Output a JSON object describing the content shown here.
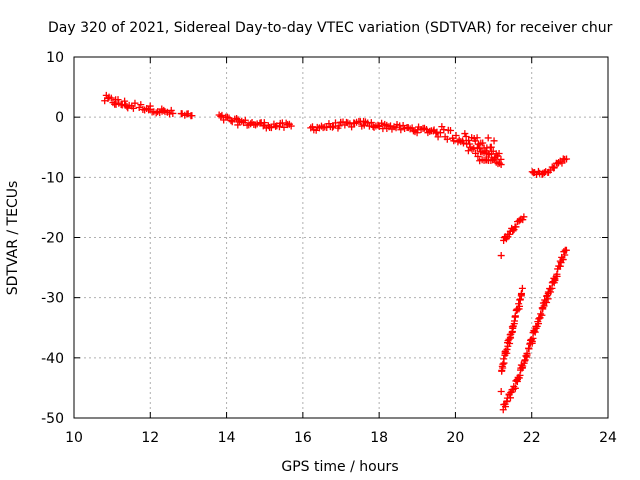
{
  "chart_data": {
    "type": "scatter",
    "title": "Day 320 of 2021, Sidereal Day-to-day VTEC variation (SDTVAR) for receiver chur",
    "xlabel": "GPS time / hours",
    "ylabel": "SDTVAR / TECUs",
    "xlim": [
      10,
      24
    ],
    "ylim": [
      -50,
      10
    ],
    "xticks": [
      "10",
      "12",
      "14",
      "16",
      "18",
      "20",
      "22",
      "24"
    ],
    "yticks": [
      "10",
      "0",
      "-10",
      "-20",
      "-30",
      "-40",
      "-50"
    ],
    "grid": true,
    "marker": "+",
    "color": "#ff0000",
    "series": [
      {
        "name": "SDTVAR",
        "segments": [
          {
            "x": [
              10.8,
              11.1,
              11.4,
              11.6
            ],
            "y": [
              3.0,
              2.5,
              2.0,
              1.8
            ],
            "spread": 1.4
          },
          {
            "x": [
              11.7,
              12.0,
              12.3,
              12.6
            ],
            "y": [
              1.8,
              1.4,
              1.0,
              0.6
            ],
            "spread": 1.0
          },
          {
            "x": [
              12.8,
              13.1
            ],
            "y": [
              0.5,
              0.2
            ],
            "spread": 0.9
          },
          {
            "x": [
              13.8,
              14.3,
              15.0,
              15.7
            ],
            "y": [
              0.0,
              -0.8,
              -1.3,
              -1.5
            ],
            "spread": 1.0
          },
          {
            "x": [
              16.2,
              17.0,
              17.6,
              18.2,
              19.0,
              19.5
            ],
            "y": [
              -1.8,
              -1.3,
              -1.1,
              -1.5,
              -2.1,
              -2.3
            ],
            "spread": 1.0
          },
          {
            "x": [
              19.5,
              20.2,
              21.0
            ],
            "y": [
              -2.3,
              -3.5,
              -4.5
            ],
            "spread": 2.0
          },
          {
            "x": [
              20.3,
              20.8,
              21.2
            ],
            "y": [
              -5.0,
              -6.0,
              -6.5
            ],
            "spread": 1.2
          },
          {
            "x": [
              20.6,
              21.2
            ],
            "y": [
              -6.8,
              -7.5
            ],
            "spread": 0.8
          },
          {
            "x": [
              21.25,
              21.5,
              21.8
            ],
            "y": [
              -20.5,
              -18.5,
              -16.8
            ],
            "spread": 0.8
          },
          {
            "x": [
              21.2,
              21.5,
              21.75
            ],
            "y": [
              -42,
              -35,
              -29
            ],
            "spread": 1.2
          },
          {
            "x": [
              21.25,
              21.6,
              22.0,
              22.4,
              22.9
            ],
            "y": [
              -48.5,
              -44,
              -37,
              -30,
              -22
            ],
            "spread": 1.2
          },
          {
            "x": [
              22.0,
              22.3,
              22.9
            ],
            "y": [
              -9.0,
              -9.5,
              -6.8
            ],
            "spread": 0.7
          },
          {
            "x": [
              21.2
            ],
            "y": [
              -23.0
            ],
            "spread": 0.3
          },
          {
            "x": [
              21.2
            ],
            "y": [
              -45.6
            ],
            "spread": 0.3
          }
        ]
      }
    ]
  }
}
